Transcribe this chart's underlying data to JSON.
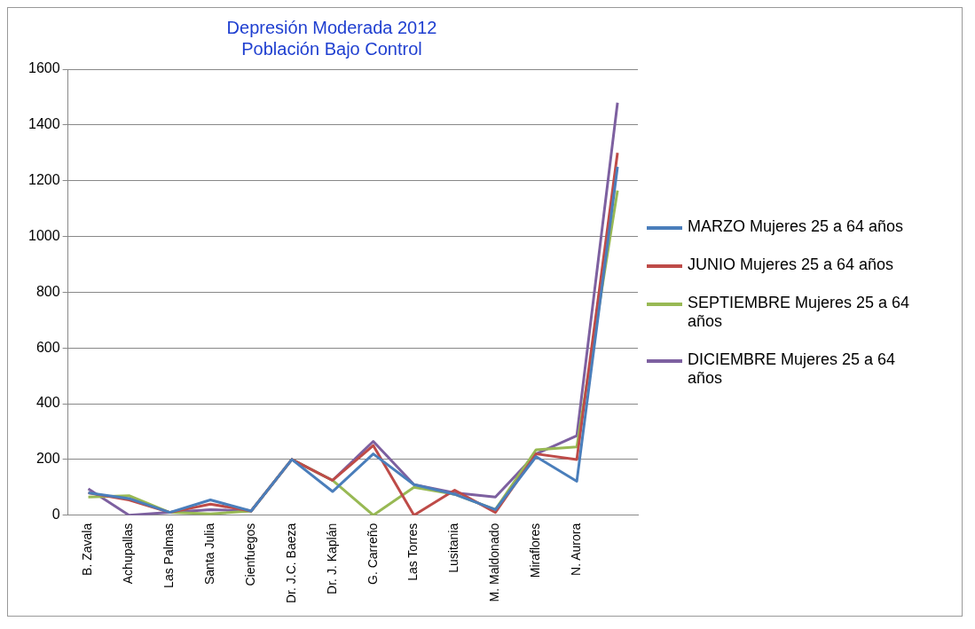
{
  "chart_data": {
    "type": "line",
    "title": "Depresión Moderada 2012\nPoblación Bajo Control",
    "categories": [
      "B. Zavala",
      "Achupallas",
      "Las Palmas",
      "Santa Julia",
      "Cienfuegos",
      "Dr. J.C. Baeza",
      "Dr. J. Kaplán",
      "G. Carreño",
      "Las Torres",
      "Lusitania",
      "M. Maldonado",
      "Miraflores",
      "N. Aurora",
      null
    ],
    "series": [
      {
        "name": "MARZO Mujeres 25 a 64 años",
        "color": "#4a7ebb",
        "values": [
          80,
          60,
          10,
          55,
          15,
          200,
          85,
          220,
          110,
          75,
          20,
          210,
          122,
          1250
        ]
      },
      {
        "name": "JUNIO Mujeres 25 a 64 años",
        "color": "#be4b48",
        "values": [
          80,
          55,
          10,
          40,
          15,
          200,
          125,
          250,
          0,
          90,
          10,
          220,
          200,
          1300
        ]
      },
      {
        "name": "SEPTIEMBRE Mujeres 25 a 64 años",
        "color": "#98b954",
        "values": [
          65,
          70,
          10,
          5,
          15,
          200,
          125,
          0,
          100,
          75,
          20,
          235,
          245,
          1165
        ]
      },
      {
        "name": "DICIEMBRE Mujeres 25 a 64 años",
        "color": "#7d60a0",
        "values": [
          95,
          0,
          10,
          20,
          15,
          200,
          125,
          265,
          110,
          80,
          65,
          220,
          285,
          1480
        ]
      }
    ],
    "ylim": [
      0,
      1600
    ],
    "yticks": [
      0,
      200,
      400,
      600,
      800,
      1000,
      1200,
      1400,
      1600
    ],
    "grid": "y",
    "legend": "right",
    "marker": "none",
    "line_style": "solid"
  }
}
